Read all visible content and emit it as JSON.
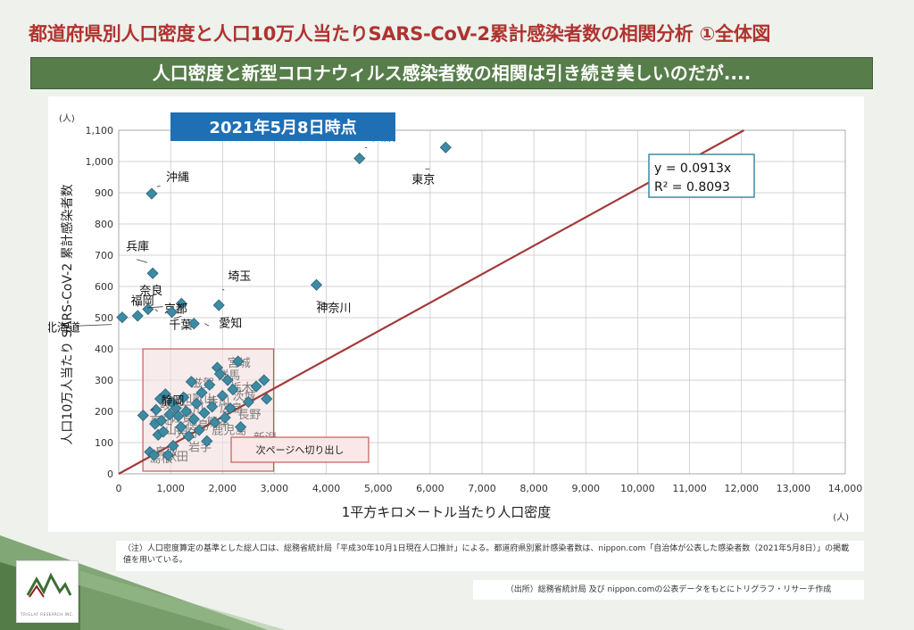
{
  "title": "都道府県別人口密度と人口10万人当たりSARS-CoV-2累計感染者数の相関分析 ①全体図",
  "subtitle": "人口密度と新型コロナウィルス感染者数の相関は引き続き美しいのだが....",
  "colors": {
    "title": "#b0332f",
    "banner": "#567d4a",
    "marker": "#3d8aa3",
    "trendline": "#a33a3a",
    "date_badge": "#1f6fb5"
  },
  "chart_data": {
    "type": "scatter",
    "date_label": "2021年5月8日時点",
    "xlabel": "1平方キロメートル当たり人口密度",
    "ylabel": "人口10万人当たり SARS-CoV-2 累計感染者数",
    "x_unit": "(人)",
    "y_unit": "(人)",
    "xlim": [
      0,
      14000
    ],
    "ylim": [
      0,
      1100
    ],
    "x_ticks": [
      0,
      1000,
      2000,
      3000,
      4000,
      5000,
      6000,
      7000,
      8000,
      9000,
      10000,
      11000,
      12000,
      13000,
      14000
    ],
    "y_ticks": [
      0,
      100,
      200,
      300,
      400,
      500,
      600,
      700,
      800,
      900,
      1000,
      1100
    ],
    "x_tick_labels": [
      "0",
      "1,000",
      "2,000",
      "3,000",
      "4,000",
      "5,000",
      "6,000",
      "7,000",
      "8,000",
      "9,000",
      "10,000",
      "11,000",
      "12,000",
      "13,000",
      "14,000"
    ],
    "y_tick_labels": [
      "0",
      "100",
      "200",
      "300",
      "400",
      "500",
      "600",
      "700",
      "800",
      "900",
      "1,000",
      "1,100"
    ],
    "grid": true,
    "trendline": {
      "slope": 0.0913,
      "intercept": 0,
      "equation": "y = 0.0913x",
      "r2": "R² = 0.8093"
    },
    "highlight_box_label": "次ページへ切り出し",
    "highlight_range": {
      "x": [
        500,
        2950
      ],
      "y": [
        0,
        400
      ]
    },
    "labeled_points": [
      {
        "name": "東京",
        "x": 6300,
        "y": 1045
      },
      {
        "name": "大阪",
        "x": 4640,
        "y": 1010
      },
      {
        "name": "沖縄",
        "x": 636,
        "y": 897
      },
      {
        "name": "神奈川",
        "x": 3810,
        "y": 605
      },
      {
        "name": "兵庫",
        "x": 655,
        "y": 642
      },
      {
        "name": "埼玉",
        "x": 1930,
        "y": 540
      },
      {
        "name": "千葉",
        "x": 1210,
        "y": 545
      },
      {
        "name": "奈良",
        "x": 365,
        "y": 506
      },
      {
        "name": "京都",
        "x": 565,
        "y": 527
      },
      {
        "name": "福岡",
        "x": 1025,
        "y": 518
      },
      {
        "name": "北海道",
        "x": 67,
        "y": 501
      },
      {
        "name": "愛知",
        "x": 1450,
        "y": 481
      },
      {
        "name": "静岡",
        "x": 470,
        "y": 187
      }
    ],
    "cluster_points": [
      {
        "x": 600,
        "y": 70
      },
      {
        "x": 680,
        "y": 60
      },
      {
        "x": 700,
        "y": 160
      },
      {
        "x": 720,
        "y": 205
      },
      {
        "x": 760,
        "y": 125
      },
      {
        "x": 800,
        "y": 240
      },
      {
        "x": 820,
        "y": 170
      },
      {
        "x": 860,
        "y": 135
      },
      {
        "x": 900,
        "y": 255
      },
      {
        "x": 950,
        "y": 60
      },
      {
        "x": 980,
        "y": 190
      },
      {
        "x": 1020,
        "y": 230
      },
      {
        "x": 1050,
        "y": 90
      },
      {
        "x": 1100,
        "y": 210
      },
      {
        "x": 1150,
        "y": 185
      },
      {
        "x": 1200,
        "y": 150
      },
      {
        "x": 1250,
        "y": 245
      },
      {
        "x": 1300,
        "y": 200
      },
      {
        "x": 1350,
        "y": 120
      },
      {
        "x": 1400,
        "y": 295
      },
      {
        "x": 1450,
        "y": 175
      },
      {
        "x": 1500,
        "y": 225
      },
      {
        "x": 1550,
        "y": 140
      },
      {
        "x": 1600,
        "y": 260
      },
      {
        "x": 1650,
        "y": 195
      },
      {
        "x": 1700,
        "y": 105
      },
      {
        "x": 1750,
        "y": 285
      },
      {
        "x": 1800,
        "y": 215
      },
      {
        "x": 1850,
        "y": 165
      },
      {
        "x": 1900,
        "y": 340
      },
      {
        "x": 1950,
        "y": 320
      },
      {
        "x": 2000,
        "y": 250
      },
      {
        "x": 2050,
        "y": 180
      },
      {
        "x": 2100,
        "y": 300
      },
      {
        "x": 2150,
        "y": 210
      },
      {
        "x": 2200,
        "y": 270
      },
      {
        "x": 2300,
        "y": 360
      },
      {
        "x": 2350,
        "y": 150
      },
      {
        "x": 2500,
        "y": 230
      },
      {
        "x": 2650,
        "y": 280
      },
      {
        "x": 2800,
        "y": 300
      },
      {
        "x": 2850,
        "y": 240
      }
    ],
    "cluster_labels": [
      {
        "name": "宮城",
        "x": 2300,
        "y": 360
      },
      {
        "name": "群馬",
        "x": 2100,
        "y": 320
      },
      {
        "name": "滋賀",
        "x": 1600,
        "y": 295
      },
      {
        "name": "栃木",
        "x": 2350,
        "y": 280
      },
      {
        "name": "茨城",
        "x": 2400,
        "y": 255
      },
      {
        "name": "和歌山",
        "x": 1400,
        "y": 245
      },
      {
        "name": "香川",
        "x": 1900,
        "y": 235
      },
      {
        "name": "岐阜",
        "x": 1000,
        "y": 225
      },
      {
        "name": "広島",
        "x": 2150,
        "y": 215
      },
      {
        "name": "石川",
        "x": 1400,
        "y": 210
      },
      {
        "name": "長野",
        "x": 2500,
        "y": 195
      },
      {
        "name": "佐賀",
        "x": 1200,
        "y": 185
      },
      {
        "name": "高知",
        "x": 800,
        "y": 175
      },
      {
        "name": "熊本",
        "x": 1900,
        "y": 170
      },
      {
        "name": "徳島",
        "x": 1500,
        "y": 160
      },
      {
        "name": "鹿児島",
        "x": 2000,
        "y": 145
      },
      {
        "name": "山口",
        "x": 1100,
        "y": 145
      },
      {
        "name": "大分",
        "x": 1300,
        "y": 135
      },
      {
        "name": "新潟",
        "x": 2800,
        "y": 120
      },
      {
        "name": "岩手",
        "x": 1550,
        "y": 90
      },
      {
        "name": "鳥取",
        "x": 900,
        "y": 75
      },
      {
        "name": "秋田",
        "x": 1100,
        "y": 60
      },
      {
        "name": "島根",
        "x": 800,
        "y": 55
      }
    ]
  },
  "note": "（注）人口密度算定の基準とした総人口は、総務省統計局「平成30年10月1日現在人口推計」による。都道府県別累計感染者数は、nippon.com「自治体が公表した感染者数（2021年5月8日）」の掲載値を用いている。",
  "source": "（出所）総務省統計局 及び nippon.comの公表データをもとにトリグラフ・リサーチ作成",
  "logo": {
    "name": "mountain-logo",
    "text": "TRIGLAF RESEARCH INC."
  }
}
